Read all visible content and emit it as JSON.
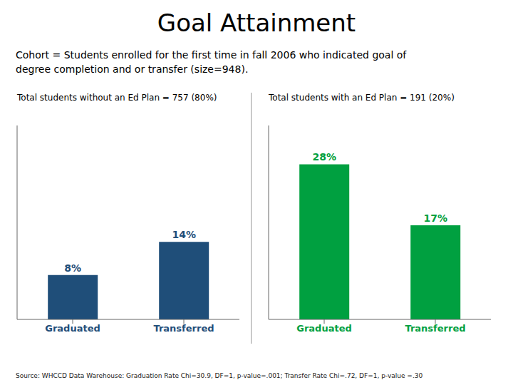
{
  "title": "Goal Attainment",
  "subtitle": "Cohort = Students enrolled for the first time in fall 2006 who indicated goal of\ndegree completion and or transfer (size=948).",
  "source": "Source: WHCCD Data Warehouse: Graduation Rate  Chi=30.9, DF=1,  p-value=.001; Transfer Rate Chi=.72, DF=1, p-value =.30",
  "chart_data": [
    {
      "type": "bar",
      "title": "Total students without an Ed Plan = 757 (80%)",
      "categories": [
        "Graduated",
        "Transferred"
      ],
      "values": [
        8,
        14
      ],
      "value_labels": [
        "8%",
        "14%"
      ],
      "color": "#1F4E79",
      "ylim": [
        0,
        35
      ],
      "yticks": [],
      "grid": false,
      "data_labels": true,
      "tick_labels": "x"
    },
    {
      "type": "bar",
      "title": "Total students with an Ed Plan = 191 (20%)",
      "categories": [
        "Graduated",
        "Transferred"
      ],
      "values": [
        28,
        17
      ],
      "value_labels": [
        "28%",
        "17%"
      ],
      "color": "#00A040",
      "ylim": [
        0,
        35
      ],
      "yticks": [],
      "grid": false,
      "data_labels": true,
      "tick_labels": "x"
    }
  ]
}
